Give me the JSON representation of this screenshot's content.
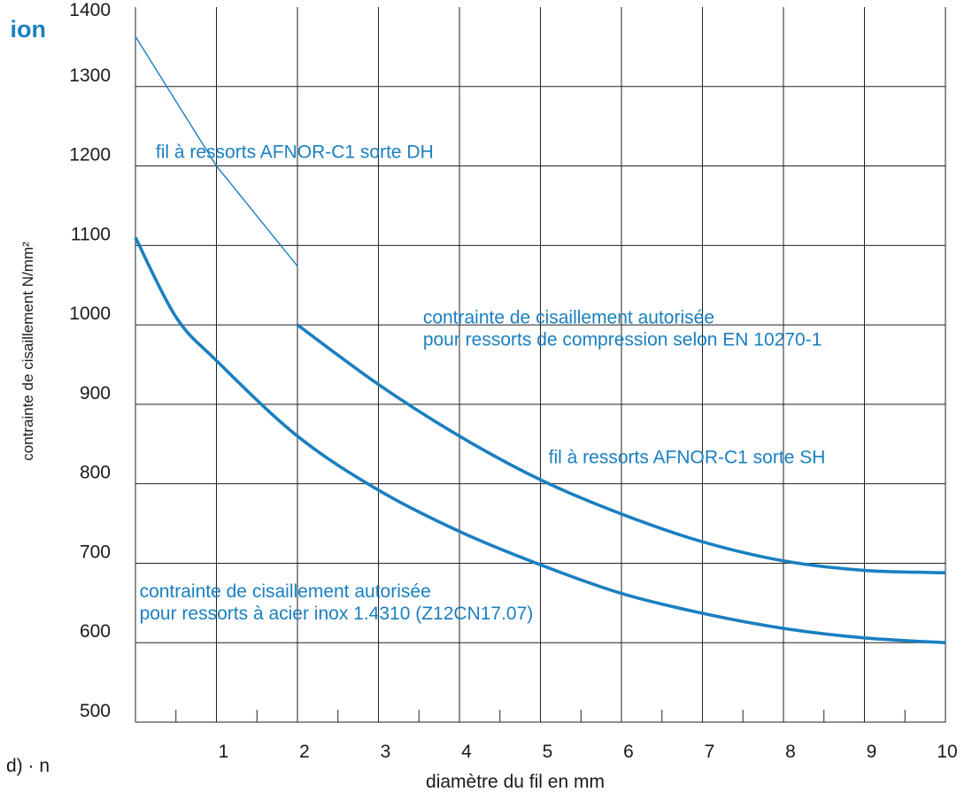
{
  "page": {
    "cut_heading": "ion",
    "cut_formula": "· d) · n"
  },
  "colors": {
    "accent": "#1a7fc1",
    "grid": "#222222",
    "text": "#1a1a1a"
  },
  "chart_data": {
    "type": "line",
    "xlabel": "diamètre du fil en mm",
    "ylabel": "contrainte de cisaillement N/mm²",
    "xlim": [
      0,
      10
    ],
    "ylim": [
      500,
      1400
    ],
    "x_ticks": [
      "1",
      "2",
      "3",
      "4",
      "5",
      "6",
      "7",
      "8",
      "9",
      "10"
    ],
    "y_ticks": [
      "500",
      "600",
      "700",
      "800",
      "900",
      "1000",
      "1100",
      "1200",
      "1300",
      "1400"
    ],
    "grid": true,
    "series": [
      {
        "label": "fil à ressorts AFNOR-C1 sorte DH",
        "stroke": "thin",
        "points": [
          [
            0,
            1363
          ],
          [
            1,
            1200
          ],
          [
            2,
            1074
          ]
        ]
      },
      {
        "label": "fil à ressorts AFNOR-C1 sorte SH",
        "stroke": "thick",
        "points": [
          [
            2,
            1000
          ],
          [
            3,
            925
          ],
          [
            4,
            860
          ],
          [
            5,
            805
          ],
          [
            6,
            762
          ],
          [
            7,
            727
          ],
          [
            8,
            703
          ],
          [
            9,
            691
          ],
          [
            10,
            688
          ]
        ]
      },
      {
        "label": "contrainte de cisaillement autorisée pour ressorts à acier inox 1.4310 (Z12CN17.07)",
        "stroke": "thick",
        "points": [
          [
            0,
            1110
          ],
          [
            0.5,
            1010
          ],
          [
            1,
            955
          ],
          [
            2,
            860
          ],
          [
            3,
            792
          ],
          [
            4,
            740
          ],
          [
            5,
            698
          ],
          [
            6,
            662
          ],
          [
            7,
            637
          ],
          [
            8,
            618
          ],
          [
            9,
            606
          ],
          [
            10,
            600
          ]
        ]
      }
    ],
    "annotations": [
      {
        "lines": [
          "fil à ressorts AFNOR-C1 sorte DH"
        ],
        "x": 0.25,
        "y": 1210
      },
      {
        "lines": [
          "contrainte de cisaillement autorisée",
          "pour ressorts de compression selon EN 10270-1"
        ],
        "x": 3.55,
        "y": 1002
      },
      {
        "lines": [
          "fil à ressorts AFNOR-C1 sorte SH"
        ],
        "x": 5.1,
        "y": 826
      },
      {
        "lines": [
          "contrainte de cisaillement autorisée",
          "pour ressorts à acier inox 1.4310 (Z12CN17.07)"
        ],
        "x": 0.05,
        "y": 657
      }
    ]
  }
}
